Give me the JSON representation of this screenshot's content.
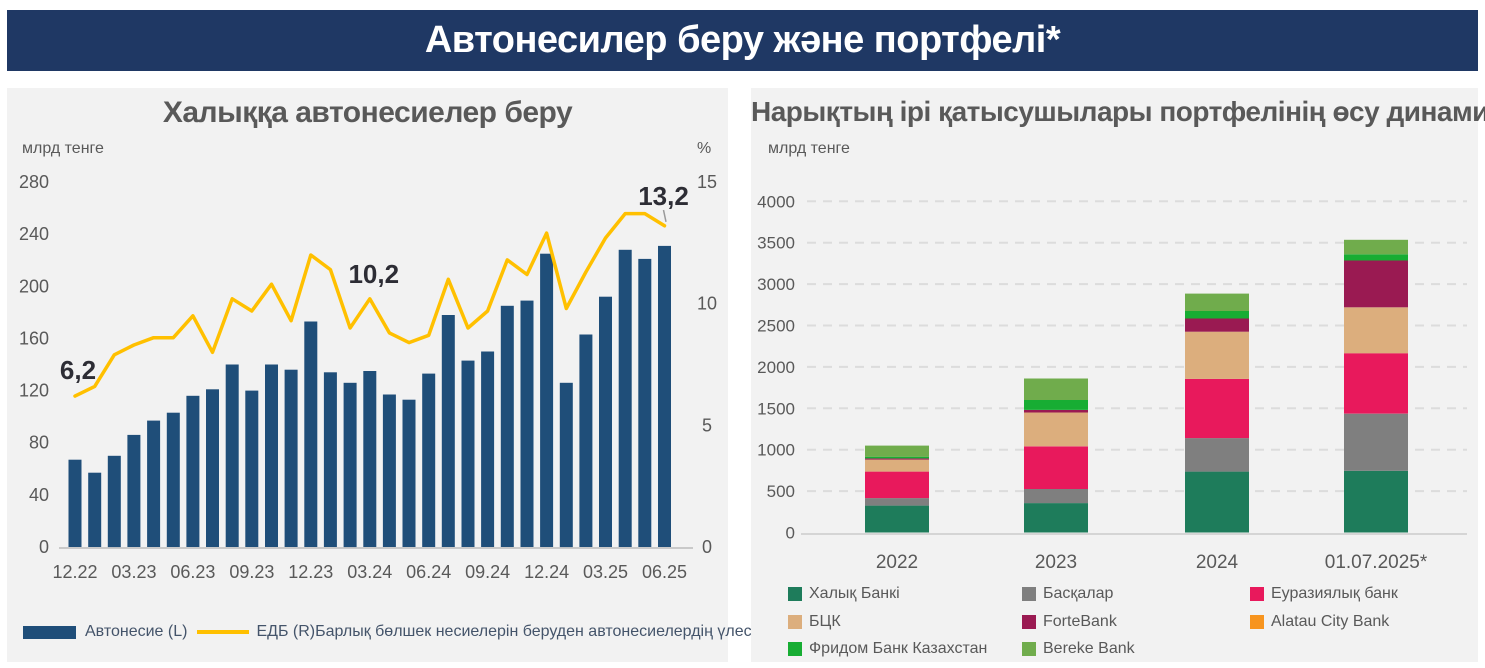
{
  "header": {
    "title": "Автонесилер беру және портфелі*",
    "bg_color": "#1F3864",
    "text_color": "#FFFFFF"
  },
  "ui_colors": {
    "panel_bg": "#F2F2F2",
    "axis_text": "#595959",
    "annotation_text": "#2D2D35",
    "legend_text_left": "#44546A",
    "legend_text_right": "#595959",
    "axis_line": "#C9C9C9",
    "gridline": "#DCDCDC"
  },
  "chart_data": [
    {
      "id": "auto-loans-chart",
      "type": "bar",
      "title": "Халыққа автонесиелер беру",
      "ylabel_left": "млрд тенге",
      "ylabel_right": "%",
      "ylim_left": [
        0,
        280
      ],
      "ylim_right": [
        0,
        15
      ],
      "yticks_left": [
        0,
        40,
        80,
        120,
        160,
        200,
        240,
        280
      ],
      "yticks_right": [
        0,
        5,
        10,
        15
      ],
      "grid": false,
      "legend_position": "bottom",
      "x": [
        "12.22",
        "01.23",
        "02.23",
        "03.23",
        "04.23",
        "05.23",
        "06.23",
        "07.23",
        "08.23",
        "09.23",
        "10.23",
        "11.23",
        "12.23",
        "01.24",
        "02.24",
        "03.24",
        "04.24",
        "05.24",
        "06.24",
        "07.24",
        "08.24",
        "09.24",
        "10.24",
        "11.24",
        "12.24",
        "01.25",
        "02.25",
        "03.25",
        "04.25",
        "05.25",
        "06.25"
      ],
      "x_tick_every": 3,
      "series": [
        {
          "name": "Автонесие (L)",
          "type": "bar",
          "axis": "left",
          "color": "#1F4E79",
          "values": [
            67,
            57,
            70,
            86,
            97,
            103,
            116,
            121,
            140,
            120,
            140,
            136,
            173,
            134,
            126,
            135,
            117,
            113,
            133,
            178,
            143,
            150,
            185,
            189,
            225,
            126,
            163,
            192,
            228,
            221,
            231
          ]
        },
        {
          "name": "ЕДБ (R)Барлық бөлшек несиелерін беруден автонесиелердің үлесі",
          "type": "line",
          "axis": "right",
          "color": "#FFC000",
          "values": [
            6.2,
            6.6,
            7.9,
            8.3,
            8.6,
            8.6,
            9.5,
            8.0,
            10.2,
            9.7,
            10.8,
            9.3,
            12.0,
            11.4,
            9.0,
            10.2,
            8.8,
            8.4,
            8.7,
            11.0,
            9.0,
            9.7,
            11.8,
            11.2,
            12.9,
            9.8,
            11.3,
            12.7,
            13.7,
            13.7,
            13.2
          ]
        }
      ],
      "annotations": [
        {
          "text": "6,2",
          "x": "12.22"
        },
        {
          "text": "10,2",
          "x": "03.24"
        },
        {
          "text": "13,2",
          "x": "06.25"
        }
      ]
    },
    {
      "id": "portfolio-chart",
      "type": "bar",
      "stacked": true,
      "title": "Нарықтың ірі қатысушылары портфелінің өсу динамикасы",
      "ylabel": "млрд тенге",
      "ylim": [
        0,
        4000
      ],
      "yticks": [
        0,
        500,
        1000,
        1500,
        2000,
        2500,
        3000,
        3500,
        4000
      ],
      "grid": true,
      "grid_style": "dashed",
      "legend_position": "bottom",
      "categories": [
        "2022",
        "2023",
        "2024",
        "01.07.2025*"
      ],
      "series": [
        {
          "name": "Халық Банкі",
          "color": "#1E7C5B",
          "values": [
            325,
            355,
            735,
            745
          ]
        },
        {
          "name": "Басқалар",
          "color": "#7F7F7F",
          "values": [
            90,
            170,
            405,
            690
          ]
        },
        {
          "name": "Еуразиялық банк",
          "color": "#E8195C",
          "values": [
            320,
            515,
            715,
            730
          ]
        },
        {
          "name": "БЦК",
          "color": "#DCAE7D",
          "values": [
            145,
            410,
            570,
            555
          ]
        },
        {
          "name": "ForteBank",
          "color": "#9A1A52",
          "values": [
            15,
            30,
            160,
            565
          ]
        },
        {
          "name": "Alatau City Bank",
          "color": "#F7941E",
          "values": [
            0,
            0,
            0,
            0
          ]
        },
        {
          "name": "Фридом Банк Казахстан",
          "color": "#17AD33",
          "values": [
            20,
            120,
            90,
            75
          ]
        },
        {
          "name": "Bereke Bank",
          "color": "#70AC4C",
          "values": [
            135,
            260,
            210,
            175
          ]
        }
      ],
      "totals": [
        1050,
        1860,
        2890,
        3545
      ]
    }
  ]
}
